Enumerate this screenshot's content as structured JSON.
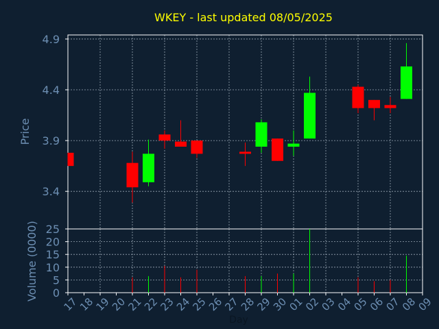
{
  "colors": {
    "background": "#0f1f30",
    "title": "#ffff00",
    "axis_text": "#6d8fb3",
    "frame": "#ffffff",
    "grid": "#9aa7b5",
    "up": "#00ff00",
    "down": "#ff0000"
  },
  "chart_data": {
    "type": "candlestick",
    "title": "WKEY - last updated 08/05/2025",
    "xlabel": "Day",
    "x_ticks": [
      "17",
      "18",
      "19",
      "20",
      "21",
      "22",
      "23",
      "24",
      "25",
      "26",
      "27",
      "28",
      "29",
      "30",
      "01",
      "02",
      "03",
      "04",
      "05",
      "06",
      "07",
      "08",
      "09"
    ],
    "price_panel": {
      "ylabel": "Price",
      "ylim": [
        3.03,
        4.94
      ],
      "y_ticks": [
        "3.4",
        "3.9",
        "4.4",
        "4.9"
      ],
      "grid": true
    },
    "volume_panel": {
      "ylabel": "Volume (0000)",
      "ylim": [
        0,
        25
      ],
      "y_ticks": [
        "0",
        "5",
        "10",
        "15",
        "20",
        "25"
      ],
      "grid": true
    },
    "candles": [
      {
        "day": "17",
        "open": 3.78,
        "close": 3.65,
        "high": 3.78,
        "low": 3.65,
        "volume": 0
      },
      {
        "day": "21",
        "open": 3.68,
        "close": 3.44,
        "high": 3.79,
        "low": 3.29,
        "volume": 6
      },
      {
        "day": "22",
        "open": 3.49,
        "close": 3.77,
        "high": 3.91,
        "low": 3.45,
        "volume": 6.5
      },
      {
        "day": "23",
        "open": 3.96,
        "close": 3.9,
        "high": 4.0,
        "low": 3.82,
        "volume": 10.5
      },
      {
        "day": "24",
        "open": 3.89,
        "close": 3.84,
        "high": 4.1,
        "low": 3.84,
        "volume": 6
      },
      {
        "day": "25",
        "open": 3.9,
        "close": 3.77,
        "high": 3.9,
        "low": 3.73,
        "volume": 9
      },
      {
        "day": "28",
        "open": 3.79,
        "close": 3.77,
        "high": 3.88,
        "low": 3.65,
        "volume": 6.5
      },
      {
        "day": "29",
        "open": 3.84,
        "close": 4.08,
        "high": 4.11,
        "low": 3.78,
        "volume": 6.5
      },
      {
        "day": "30",
        "open": 3.92,
        "close": 3.7,
        "high": 3.92,
        "low": 3.7,
        "volume": 7.5
      },
      {
        "day": "01",
        "open": 3.84,
        "close": 3.87,
        "high": 4.0,
        "low": 3.75,
        "volume": 7.5
      },
      {
        "day": "02",
        "open": 3.92,
        "close": 4.37,
        "high": 4.53,
        "low": 3.92,
        "volume": 25
      },
      {
        "day": "05",
        "open": 4.43,
        "close": 4.22,
        "high": 4.45,
        "low": 4.17,
        "volume": 6
      },
      {
        "day": "06",
        "open": 4.3,
        "close": 4.22,
        "high": 4.3,
        "low": 4.1,
        "volume": 4.5
      },
      {
        "day": "07",
        "open": 4.25,
        "close": 4.22,
        "high": 4.33,
        "low": 4.17,
        "volume": 5
      },
      {
        "day": "08",
        "open": 4.31,
        "close": 4.63,
        "high": 4.86,
        "low": 4.31,
        "volume": 14.5
      }
    ]
  }
}
